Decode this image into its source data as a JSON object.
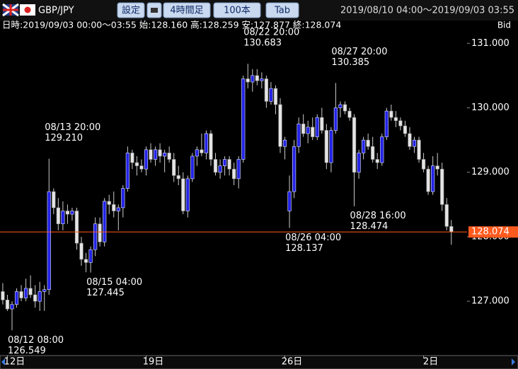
{
  "toolbar": {
    "pair": "GBP/JPY",
    "buttons": [
      "設定",
      "4時間足",
      "100本",
      "Tab"
    ],
    "range": "2019/08/10 04:00〜2019/09/03 03:55"
  },
  "chart_data": {
    "type": "candlestick",
    "info": "日時:2019/09/03 00:00〜03:55 始:128.160 高:128.259 安:127.877 終:128.074",
    "price_side": "Bid",
    "up_color": "#2323e6",
    "down_color": "#e4e4e4",
    "categories": [
      null,
      "12日",
      null,
      null,
      null,
      null,
      null,
      null,
      null,
      null,
      null,
      null,
      null,
      null,
      null,
      null,
      null,
      null,
      null,
      null,
      null,
      null,
      null,
      null,
      null,
      null,
      null,
      null,
      null,
      null,
      null,
      "19日",
      null,
      null,
      null,
      null,
      null,
      null,
      null,
      null,
      null,
      null,
      null,
      null,
      null,
      null,
      null,
      null,
      null,
      null,
      null,
      null,
      null,
      null,
      null,
      null,
      null,
      null,
      null,
      null,
      null,
      "26日",
      null,
      null,
      null,
      null,
      null,
      null,
      null,
      null,
      null,
      null,
      null,
      null,
      null,
      null,
      null,
      null,
      null,
      null,
      null,
      null,
      null,
      null,
      null,
      null,
      null,
      null,
      null,
      null,
      null,
      "2日",
      null,
      null,
      null,
      null,
      null,
      null
    ],
    "open": [
      127.15,
      127.02,
      126.88,
      126.95,
      127.15,
      127.05,
      127.2,
      127.1,
      127.0,
      127.15,
      127.18,
      128.7,
      128.45,
      128.2,
      128.4,
      128.35,
      128.4,
      127.9,
      127.65,
      127.6,
      127.8,
      128.2,
      127.92,
      128.55,
      128.5,
      128.4,
      128.45,
      128.75,
      129.3,
      129.15,
      129.1,
      129.05,
      129.35,
      129.2,
      129.35,
      129.25,
      129.3,
      129.2,
      128.95,
      128.9,
      128.4,
      128.9,
      129.25,
      129.35,
      129.3,
      129.6,
      129.2,
      129.0,
      129.1,
      129.2,
      129.05,
      128.9,
      129.2,
      130.45,
      130.4,
      130.5,
      130.42,
      130.45,
      130.1,
      130.3,
      130.05,
      129.4,
      128.4,
      128.7,
      129.4,
      129.75,
      129.6,
      129.7,
      129.55,
      129.85,
      129.65,
      129.15,
      129.65,
      130.0,
      130.05,
      129.95,
      129.85,
      129.0,
      129.3,
      129.5,
      129.4,
      129.2,
      129.15,
      129.55,
      129.95,
      129.85,
      129.8,
      129.72,
      129.6,
      129.4,
      129.5,
      129.2,
      129.05,
      128.7,
      129.1,
      129.05,
      128.5,
      128.16
    ],
    "high": [
      127.28,
      127.1,
      127.0,
      127.2,
      127.25,
      127.35,
      127.4,
      127.25,
      127.3,
      127.25,
      129.21,
      128.75,
      128.6,
      128.55,
      128.5,
      128.45,
      128.45,
      128.0,
      127.75,
      127.85,
      128.3,
      128.3,
      128.6,
      128.65,
      128.7,
      128.5,
      128.8,
      129.4,
      129.35,
      129.25,
      129.2,
      129.4,
      129.45,
      129.4,
      129.45,
      129.35,
      129.4,
      129.3,
      129.1,
      129.0,
      128.95,
      129.3,
      129.4,
      129.6,
      129.65,
      129.65,
      129.3,
      129.2,
      129.25,
      129.25,
      129.15,
      129.25,
      130.5,
      130.683,
      130.6,
      130.6,
      130.55,
      130.5,
      130.4,
      130.35,
      130.15,
      129.55,
      128.95,
      129.5,
      129.85,
      129.9,
      129.8,
      129.85,
      129.9,
      130.0,
      129.75,
      129.7,
      130.385,
      130.1,
      130.1,
      130.0,
      129.9,
      129.35,
      129.55,
      129.6,
      129.55,
      129.3,
      129.6,
      130.0,
      130.05,
      129.95,
      129.85,
      129.8,
      129.7,
      129.55,
      129.55,
      129.3,
      129.1,
      129.25,
      129.3,
      129.15,
      128.6,
      128.259
    ],
    "low": [
      126.95,
      126.85,
      126.549,
      126.9,
      127.0,
      127.0,
      127.05,
      126.9,
      126.85,
      126.85,
      127.1,
      128.35,
      128.1,
      128.1,
      128.2,
      128.25,
      127.8,
      127.55,
      127.45,
      127.445,
      127.7,
      127.85,
      127.85,
      128.35,
      128.3,
      128.1,
      128.3,
      128.7,
      129.05,
      128.95,
      129.0,
      128.95,
      129.15,
      129.1,
      129.15,
      129.0,
      129.15,
      128.85,
      128.8,
      128.35,
      128.3,
      128.85,
      129.1,
      129.25,
      129.2,
      129.1,
      128.95,
      128.9,
      128.95,
      128.95,
      128.8,
      128.75,
      129.15,
      130.3,
      130.25,
      130.35,
      130.3,
      130.0,
      130.05,
      129.9,
      129.3,
      129.2,
      128.137,
      128.6,
      129.3,
      129.55,
      129.45,
      129.5,
      129.5,
      129.6,
      129.05,
      129.0,
      129.6,
      129.85,
      129.9,
      129.8,
      128.474,
      128.9,
      129.2,
      129.35,
      129.15,
      129.05,
      129.1,
      129.5,
      129.8,
      129.7,
      129.65,
      129.55,
      129.35,
      129.3,
      129.15,
      129.0,
      128.65,
      128.65,
      128.95,
      128.4,
      128.1,
      127.877
    ],
    "close": [
      127.02,
      126.88,
      126.95,
      127.15,
      127.05,
      127.2,
      127.1,
      127.0,
      127.15,
      127.18,
      128.7,
      128.45,
      128.2,
      128.4,
      128.35,
      128.4,
      127.9,
      127.65,
      127.6,
      127.8,
      128.2,
      127.92,
      128.55,
      128.5,
      128.4,
      128.45,
      128.75,
      129.3,
      129.15,
      129.1,
      129.05,
      129.35,
      129.2,
      129.35,
      129.25,
      129.3,
      129.2,
      128.95,
      128.9,
      128.4,
      128.9,
      129.25,
      129.35,
      129.3,
      129.6,
      129.2,
      129.0,
      129.1,
      129.2,
      129.05,
      128.9,
      129.2,
      130.45,
      130.4,
      130.5,
      130.42,
      130.45,
      130.1,
      130.3,
      130.05,
      129.4,
      129.5,
      128.7,
      129.4,
      129.75,
      129.6,
      129.7,
      129.55,
      129.85,
      129.65,
      129.15,
      129.65,
      130.0,
      130.05,
      129.95,
      129.85,
      129.0,
      129.3,
      129.5,
      129.4,
      129.2,
      129.15,
      129.55,
      129.95,
      129.85,
      129.8,
      129.72,
      129.6,
      129.4,
      129.5,
      129.2,
      129.05,
      128.7,
      129.1,
      129.05,
      128.5,
      128.16,
      128.074
    ],
    "annotations": [
      {
        "time": "08/12 08:00",
        "price": 126.549
      },
      {
        "time": "08/13 20:00",
        "price": {
          "value": 129.21,
          "label": "129.210"
        }
      },
      {
        "time": "08/15 04:00",
        "price": 127.445
      },
      {
        "time": "08/22 20:00",
        "price": 130.683
      },
      {
        "time": "08/26 04:00",
        "price": 128.137
      },
      {
        "time": "08/27 20:00",
        "price": 130.385
      },
      {
        "time": "08/28 16:00",
        "price": 128.474
      }
    ],
    "current_price": {
      "value": 128.074,
      "label": "128.074"
    },
    "current_color": "#ff5a1e",
    "ylim": [
      126.19,
      131.19
    ],
    "yticks": [
      {
        "value": 127,
        "label": "127.000"
      },
      {
        "value": 128,
        "label": "128.000"
      },
      {
        "value": 129,
        "label": "129.000"
      },
      {
        "value": 130,
        "label": "130.000"
      },
      {
        "value": 131,
        "label": "131.000"
      }
    ]
  }
}
